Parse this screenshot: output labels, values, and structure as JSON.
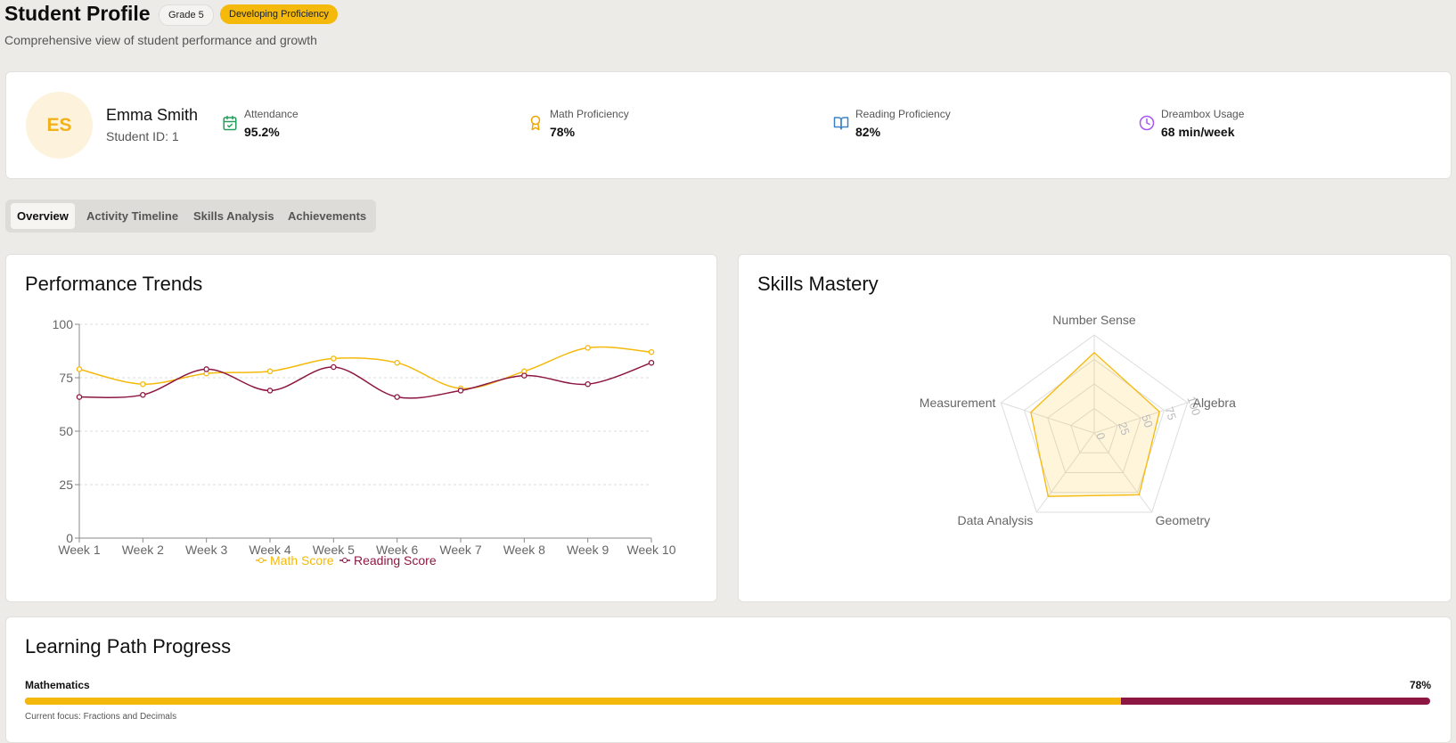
{
  "header": {
    "title": "Student Profile",
    "grade_badge": "Grade 5",
    "level_badge": "Developing Proficiency",
    "subtitle": "Comprehensive view of student performance and growth"
  },
  "student": {
    "initials": "ES",
    "name": "Emma Smith",
    "id_label": "Student ID: 1"
  },
  "stats": [
    {
      "label": "Attendance",
      "value": "95.2%",
      "icon": "calendar-check-icon",
      "color": "#22a05b"
    },
    {
      "label": "Math Proficiency",
      "value": "78%",
      "icon": "award-icon",
      "color": "#f0a500"
    },
    {
      "label": "Reading Proficiency",
      "value": "82%",
      "icon": "book-open-icon",
      "color": "#3b82c4"
    },
    {
      "label": "Dreambox Usage",
      "value": "68 min/week",
      "icon": "clock-icon",
      "color": "#a855f7"
    }
  ],
  "tabs": [
    "Overview",
    "Activity Timeline",
    "Skills Analysis",
    "Achievements"
  ],
  "performance": {
    "title": "Performance Trends"
  },
  "skills": {
    "title": "Skills Mastery"
  },
  "progress": {
    "title": "Learning Path Progress",
    "subject": "Mathematics",
    "percent_label": "78%",
    "percent": 78,
    "focus": "Current focus: Fractions and Decimals"
  },
  "chart_data": [
    {
      "type": "line",
      "title": "Performance Trends",
      "categories": [
        "Week 1",
        "Week 2",
        "Week 3",
        "Week 4",
        "Week 5",
        "Week 6",
        "Week 7",
        "Week 8",
        "Week 9",
        "Week 10"
      ],
      "series": [
        {
          "name": "Math Score",
          "color": "#f5b90b",
          "values": [
            79,
            72,
            77,
            78,
            84,
            82,
            70,
            78,
            89,
            87
          ]
        },
        {
          "name": "Reading Score",
          "color": "#8d1743",
          "values": [
            66,
            67,
            79,
            69,
            80,
            66,
            69,
            76,
            72,
            82
          ]
        }
      ],
      "yticks": [
        "0",
        "25",
        "50",
        "75",
        "100"
      ],
      "ylim": [
        0,
        100
      ],
      "legend": "bottom"
    },
    {
      "type": "radar",
      "title": "Skills Mastery",
      "axes": [
        "Number Sense",
        "Algebra",
        "Geometry",
        "Data Analysis",
        "Measurement"
      ],
      "values": [
        82,
        70,
        78,
        80,
        68
      ],
      "rticks": [
        "0",
        "25",
        "50",
        "75",
        "100"
      ],
      "rlim": [
        0,
        100
      ],
      "color": "#f5b90b"
    }
  ]
}
